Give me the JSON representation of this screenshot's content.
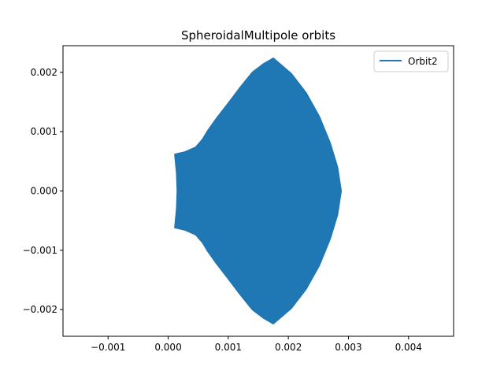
{
  "chart_data": {
    "type": "line",
    "title": "SpheroidalMultipole orbits",
    "xlabel": "",
    "ylabel": "",
    "xlim": [
      -0.00175,
      0.00475
    ],
    "ylim": [
      -0.00245,
      0.00245
    ],
    "x_ticks": [
      -0.001,
      0.0,
      0.001,
      0.002,
      0.003,
      0.004
    ],
    "x_tick_labels": [
      "−0.001",
      "0.000",
      "0.001",
      "0.002",
      "0.003",
      "0.004"
    ],
    "y_ticks": [
      -0.002,
      -0.001,
      0.0,
      0.001,
      0.002
    ],
    "y_tick_labels": [
      "−0.002",
      "−0.001",
      "0.000",
      "0.001",
      "0.002"
    ],
    "grid": false,
    "legend_position": "upper right",
    "series": [
      {
        "name": "Orbit2",
        "color": "#1f77b4",
        "region_outline": {
          "x": [
            0.00011,
            0.00028,
            0.00046,
            0.00057,
            0.00066,
            0.0008,
            0.001,
            0.0012,
            0.0014,
            0.00158,
            0.00175,
            0.00205,
            0.0023,
            0.00252,
            0.0027,
            0.00282,
            0.00288,
            0.00282,
            0.0027,
            0.00252,
            0.0023,
            0.00205,
            0.00175,
            0.00158,
            0.0014,
            0.0012,
            0.001,
            0.0008,
            0.00066,
            0.00057,
            0.00046,
            0.00028,
            0.00011,
            0.00014,
            0.00015,
            0.00014
          ],
          "y": [
            0.00062,
            0.00066,
            0.00074,
            0.00087,
            0.00102,
            0.00122,
            0.00148,
            0.00175,
            0.002,
            0.00214,
            0.00224,
            0.00198,
            0.00165,
            0.00125,
            0.0008,
            0.0004,
            0.0,
            -0.0004,
            -0.0008,
            -0.00125,
            -0.00165,
            -0.00198,
            -0.00224,
            -0.00214,
            -0.002,
            -0.00175,
            -0.00148,
            -0.00122,
            -0.00102,
            -0.00087,
            -0.00074,
            -0.00066,
            -0.00062,
            -0.0003,
            0.0,
            0.0003
          ]
        }
      }
    ]
  }
}
